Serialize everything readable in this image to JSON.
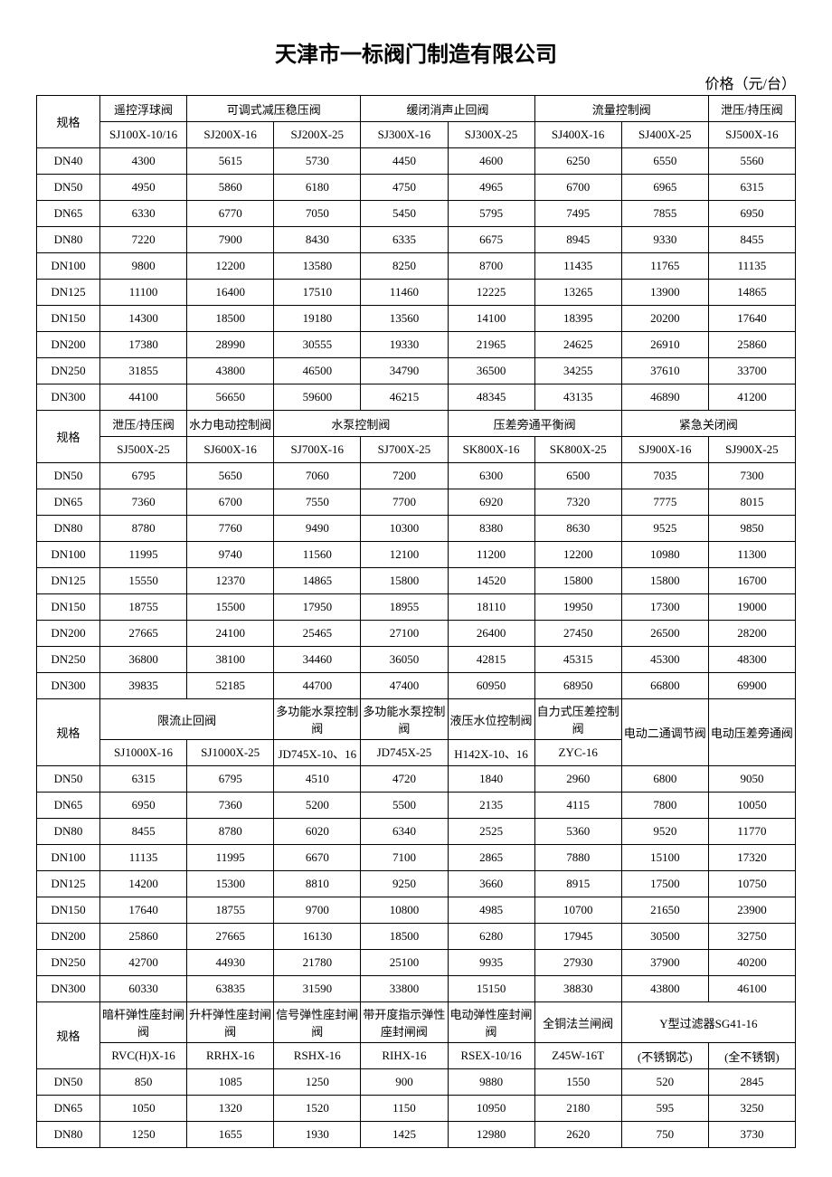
{
  "title": "天津市一标阀门制造有限公司",
  "unit": "价格（元/台）",
  "specLabel": "规格",
  "section1": {
    "groups": [
      "遥控浮球阀",
      "可调式减压稳压阀",
      "缓闭消声止回阀",
      "流量控制阀",
      "泄压/持压阀"
    ],
    "models": [
      "SJ100X-10/16",
      "SJ200X-16",
      "SJ200X-25",
      "SJ300X-16",
      "SJ300X-25",
      "SJ400X-16",
      "SJ400X-25",
      "SJ500X-16"
    ],
    "rows": [
      {
        "spec": "DN40",
        "v": [
          "4300",
          "5615",
          "5730",
          "4450",
          "4600",
          "6250",
          "6550",
          "5560"
        ]
      },
      {
        "spec": "DN50",
        "v": [
          "4950",
          "5860",
          "6180",
          "4750",
          "4965",
          "6700",
          "6965",
          "6315"
        ]
      },
      {
        "spec": "DN65",
        "v": [
          "6330",
          "6770",
          "7050",
          "5450",
          "5795",
          "7495",
          "7855",
          "6950"
        ]
      },
      {
        "spec": "DN80",
        "v": [
          "7220",
          "7900",
          "8430",
          "6335",
          "6675",
          "8945",
          "9330",
          "8455"
        ]
      },
      {
        "spec": "DN100",
        "v": [
          "9800",
          "12200",
          "13580",
          "8250",
          "8700",
          "11435",
          "11765",
          "11135"
        ]
      },
      {
        "spec": "DN125",
        "v": [
          "11100",
          "16400",
          "17510",
          "11460",
          "12225",
          "13265",
          "13900",
          "14865"
        ]
      },
      {
        "spec": "DN150",
        "v": [
          "14300",
          "18500",
          "19180",
          "13560",
          "14100",
          "18395",
          "20200",
          "17640"
        ]
      },
      {
        "spec": "DN200",
        "v": [
          "17380",
          "28990",
          "30555",
          "19330",
          "21965",
          "24625",
          "26910",
          "25860"
        ]
      },
      {
        "spec": "DN250",
        "v": [
          "31855",
          "43800",
          "46500",
          "34790",
          "36500",
          "34255",
          "37610",
          "33700"
        ]
      },
      {
        "spec": "DN300",
        "v": [
          "44100",
          "56650",
          "59600",
          "46215",
          "48345",
          "43135",
          "46890",
          "41200"
        ]
      }
    ]
  },
  "section2": {
    "groups": [
      "泄压/持压阀",
      "水力电动控制阀",
      "水泵控制阀",
      "压差旁通平衡阀",
      "紧急关闭阀"
    ],
    "models": [
      "SJ500X-25",
      "SJ600X-16",
      "SJ700X-16",
      "SJ700X-25",
      "SK800X-16",
      "SK800X-25",
      "SJ900X-16",
      "SJ900X-25"
    ],
    "rows": [
      {
        "spec": "DN50",
        "v": [
          "6795",
          "5650",
          "7060",
          "7200",
          "6300",
          "6500",
          "7035",
          "7300"
        ]
      },
      {
        "spec": "DN65",
        "v": [
          "7360",
          "6700",
          "7550",
          "7700",
          "6920",
          "7320",
          "7775",
          "8015"
        ]
      },
      {
        "spec": "DN80",
        "v": [
          "8780",
          "7760",
          "9490",
          "10300",
          "8380",
          "8630",
          "9525",
          "9850"
        ]
      },
      {
        "spec": "DN100",
        "v": [
          "11995",
          "9740",
          "11560",
          "12100",
          "11200",
          "12200",
          "10980",
          "11300"
        ]
      },
      {
        "spec": "DN125",
        "v": [
          "15550",
          "12370",
          "14865",
          "15800",
          "14520",
          "15800",
          "15800",
          "16700"
        ]
      },
      {
        "spec": "DN150",
        "v": [
          "18755",
          "15500",
          "17950",
          "18955",
          "18110",
          "19950",
          "17300",
          "19000"
        ]
      },
      {
        "spec": "DN200",
        "v": [
          "27665",
          "24100",
          "25465",
          "27100",
          "26400",
          "27450",
          "26500",
          "28200"
        ]
      },
      {
        "spec": "DN250",
        "v": [
          "36800",
          "38100",
          "34460",
          "36050",
          "42815",
          "45315",
          "45300",
          "48300"
        ]
      },
      {
        "spec": "DN300",
        "v": [
          "39835",
          "52185",
          "44700",
          "47400",
          "60950",
          "68950",
          "66800",
          "69900"
        ]
      }
    ]
  },
  "section3": {
    "groups": [
      "限流止回阀",
      "多功能水泵控制阀",
      "多功能水泵控制阀",
      "液压水位控制阀",
      "自力式压差控制阀",
      "电动二通调节阀",
      "电动压差旁通阀"
    ],
    "models": [
      "SJ1000X-16",
      "SJ1000X-25",
      "JD745X-10、16",
      "JD745X-25",
      "H142X-10、16",
      "ZYC-16"
    ],
    "rows": [
      {
        "spec": "DN50",
        "v": [
          "6315",
          "6795",
          "4510",
          "4720",
          "1840",
          "2960",
          "6800",
          "9050"
        ]
      },
      {
        "spec": "DN65",
        "v": [
          "6950",
          "7360",
          "5200",
          "5500",
          "2135",
          "4115",
          "7800",
          "10050"
        ]
      },
      {
        "spec": "DN80",
        "v": [
          "8455",
          "8780",
          "6020",
          "6340",
          "2525",
          "5360",
          "9520",
          "11770"
        ]
      },
      {
        "spec": "DN100",
        "v": [
          "11135",
          "11995",
          "6670",
          "7100",
          "2865",
          "7880",
          "15100",
          "17320"
        ]
      },
      {
        "spec": "DN125",
        "v": [
          "14200",
          "15300",
          "8810",
          "9250",
          "3660",
          "8915",
          "17500",
          "10750"
        ]
      },
      {
        "spec": "DN150",
        "v": [
          "17640",
          "18755",
          "9700",
          "10800",
          "4985",
          "10700",
          "21650",
          "23900"
        ]
      },
      {
        "spec": "DN200",
        "v": [
          "25860",
          "27665",
          "16130",
          "18500",
          "6280",
          "17945",
          "30500",
          "32750"
        ]
      },
      {
        "spec": "DN250",
        "v": [
          "42700",
          "44930",
          "21780",
          "25100",
          "9935",
          "27930",
          "37900",
          "40200"
        ]
      },
      {
        "spec": "DN300",
        "v": [
          "60330",
          "63835",
          "31590",
          "33800",
          "15150",
          "38830",
          "43800",
          "46100"
        ]
      }
    ]
  },
  "section4": {
    "groups": [
      "暗杆弹性座封闸阀",
      "升杆弹性座封闸阀",
      "信号弹性座封闸阀",
      "带开度指示弹性座封闸阀",
      "电动弹性座封闸阀",
      "全铜法兰闸阀",
      "Y型过滤器SG41-16"
    ],
    "models": [
      "RVC(H)X-16",
      "RRHX-16",
      "RSHX-16",
      "RIHX-16",
      "RSEX-10/16",
      "Z45W-16T",
      "(不锈钢芯)",
      "(全不锈钢)"
    ],
    "rows": [
      {
        "spec": "DN50",
        "v": [
          "850",
          "1085",
          "1250",
          "900",
          "9880",
          "1550",
          "520",
          "2845"
        ]
      },
      {
        "spec": "DN65",
        "v": [
          "1050",
          "1320",
          "1520",
          "1150",
          "10950",
          "2180",
          "595",
          "3250"
        ]
      },
      {
        "spec": "DN80",
        "v": [
          "1250",
          "1655",
          "1930",
          "1425",
          "12980",
          "2620",
          "750",
          "3730"
        ]
      }
    ]
  }
}
